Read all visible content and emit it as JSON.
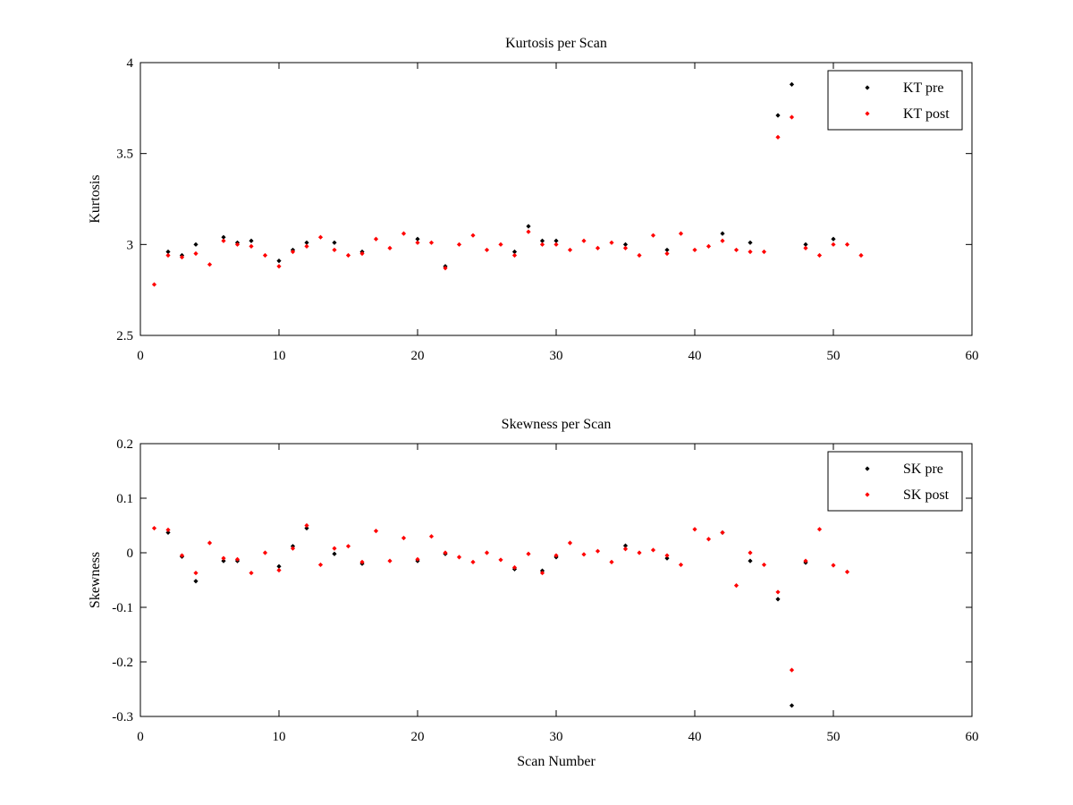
{
  "chart_data": [
    {
      "type": "scatter",
      "title": "Kurtosis per Scan",
      "xlabel": "",
      "ylabel": "Kurtosis",
      "xlim": [
        0,
        60
      ],
      "ylim": [
        2.5,
        4
      ],
      "xticks": [
        "0",
        "10",
        "20",
        "30",
        "40",
        "50",
        "60"
      ],
      "yticks": [
        "2.5",
        "3",
        "3.5",
        "4"
      ],
      "legend": "top-right",
      "grid": false,
      "series": [
        {
          "name": "KT pre",
          "color": "#000000",
          "points": [
            [
              2,
              2.96
            ],
            [
              3,
              2.94
            ],
            [
              4,
              3.0
            ],
            [
              6,
              3.04
            ],
            [
              7,
              3.01
            ],
            [
              8,
              3.02
            ],
            [
              10,
              2.91
            ],
            [
              11,
              2.97
            ],
            [
              12,
              3.01
            ],
            [
              14,
              3.01
            ],
            [
              16,
              2.96
            ],
            [
              20,
              3.03
            ],
            [
              22,
              2.88
            ],
            [
              27,
              2.96
            ],
            [
              28,
              3.1
            ],
            [
              29,
              3.02
            ],
            [
              30,
              3.02
            ],
            [
              35,
              3.0
            ],
            [
              38,
              2.97
            ],
            [
              42,
              3.06
            ],
            [
              44,
              3.01
            ],
            [
              46,
              3.71
            ],
            [
              47,
              3.88
            ],
            [
              48,
              3.0
            ],
            [
              50,
              3.03
            ]
          ]
        },
        {
          "name": "KT post",
          "color": "#ff0000",
          "points": [
            [
              1,
              2.78
            ],
            [
              2,
              2.94
            ],
            [
              3,
              2.93
            ],
            [
              4,
              2.95
            ],
            [
              5,
              2.89
            ],
            [
              6,
              3.02
            ],
            [
              7,
              3.0
            ],
            [
              8,
              2.99
            ],
            [
              9,
              2.94
            ],
            [
              10,
              2.88
            ],
            [
              11,
              2.96
            ],
            [
              12,
              2.99
            ],
            [
              13,
              3.04
            ],
            [
              14,
              2.97
            ],
            [
              15,
              2.94
            ],
            [
              16,
              2.95
            ],
            [
              17,
              3.03
            ],
            [
              18,
              2.98
            ],
            [
              19,
              3.06
            ],
            [
              20,
              3.01
            ],
            [
              21,
              3.01
            ],
            [
              22,
              2.87
            ],
            [
              23,
              3.0
            ],
            [
              24,
              3.05
            ],
            [
              25,
              2.97
            ],
            [
              26,
              3.0
            ],
            [
              27,
              2.94
            ],
            [
              28,
              3.07
            ],
            [
              29,
              3.0
            ],
            [
              30,
              3.0
            ],
            [
              31,
              2.97
            ],
            [
              32,
              3.02
            ],
            [
              33,
              2.98
            ],
            [
              34,
              3.01
            ],
            [
              35,
              2.98
            ],
            [
              36,
              2.94
            ],
            [
              37,
              3.05
            ],
            [
              38,
              2.95
            ],
            [
              39,
              3.06
            ],
            [
              40,
              2.97
            ],
            [
              41,
              2.99
            ],
            [
              42,
              3.02
            ],
            [
              43,
              2.97
            ],
            [
              44,
              2.96
            ],
            [
              45,
              2.96
            ],
            [
              46,
              3.59
            ],
            [
              47,
              3.7
            ],
            [
              48,
              2.98
            ],
            [
              49,
              2.94
            ],
            [
              50,
              3.0
            ],
            [
              51,
              3.0
            ],
            [
              52,
              2.94
            ]
          ]
        }
      ]
    },
    {
      "type": "scatter",
      "title": "Skewness per Scan",
      "xlabel": "Scan Number",
      "ylabel": "Skewness",
      "xlim": [
        0,
        60
      ],
      "ylim": [
        -0.3,
        0.2
      ],
      "xticks": [
        "0",
        "10",
        "20",
        "30",
        "40",
        "50",
        "60"
      ],
      "yticks": [
        "-0.3",
        "-0.2",
        "-0.1",
        "0",
        "0.1",
        "0.2"
      ],
      "legend": "top-right",
      "grid": false,
      "series": [
        {
          "name": "SK pre",
          "color": "#000000",
          "points": [
            [
              2,
              0.037
            ],
            [
              3,
              -0.007
            ],
            [
              4,
              -0.052
            ],
            [
              6,
              -0.015
            ],
            [
              7,
              -0.015
            ],
            [
              10,
              -0.025
            ],
            [
              11,
              0.012
            ],
            [
              12,
              0.045
            ],
            [
              14,
              -0.002
            ],
            [
              16,
              -0.02
            ],
            [
              20,
              -0.015
            ],
            [
              22,
              -0.002
            ],
            [
              27,
              -0.03
            ],
            [
              29,
              -0.033
            ],
            [
              30,
              -0.008
            ],
            [
              35,
              0.013
            ],
            [
              38,
              -0.01
            ],
            [
              42,
              0.037
            ],
            [
              44,
              -0.015
            ],
            [
              46,
              -0.085
            ],
            [
              47,
              -0.28
            ],
            [
              48,
              -0.018
            ]
          ]
        },
        {
          "name": "SK post",
          "color": "#ff0000",
          "points": [
            [
              1,
              0.045
            ],
            [
              2,
              0.042
            ],
            [
              3,
              -0.005
            ],
            [
              4,
              -0.037
            ],
            [
              5,
              0.018
            ],
            [
              6,
              -0.01
            ],
            [
              7,
              -0.012
            ],
            [
              8,
              -0.037
            ],
            [
              9,
              0.0
            ],
            [
              10,
              -0.032
            ],
            [
              11,
              0.008
            ],
            [
              12,
              0.05
            ],
            [
              13,
              -0.022
            ],
            [
              14,
              0.008
            ],
            [
              15,
              0.012
            ],
            [
              16,
              -0.017
            ],
            [
              17,
              0.04
            ],
            [
              18,
              -0.015
            ],
            [
              19,
              0.027
            ],
            [
              20,
              -0.012
            ],
            [
              21,
              0.03
            ],
            [
              22,
              0.0
            ],
            [
              23,
              -0.008
            ],
            [
              24,
              -0.017
            ],
            [
              25,
              0.0
            ],
            [
              26,
              -0.013
            ],
            [
              27,
              -0.027
            ],
            [
              28,
              -0.002
            ],
            [
              29,
              -0.037
            ],
            [
              30,
              -0.005
            ],
            [
              31,
              0.018
            ],
            [
              32,
              -0.003
            ],
            [
              33,
              0.003
            ],
            [
              34,
              -0.017
            ],
            [
              35,
              0.007
            ],
            [
              36,
              0.0
            ],
            [
              37,
              0.005
            ],
            [
              38,
              -0.005
            ],
            [
              39,
              -0.022
            ],
            [
              40,
              0.043
            ],
            [
              41,
              0.025
            ],
            [
              42,
              0.037
            ],
            [
              43,
              -0.06
            ],
            [
              44,
              0.0
            ],
            [
              45,
              -0.022
            ],
            [
              46,
              -0.072
            ],
            [
              47,
              -0.215
            ],
            [
              48,
              -0.015
            ],
            [
              49,
              0.043
            ],
            [
              50,
              -0.023
            ],
            [
              51,
              -0.035
            ]
          ]
        }
      ]
    }
  ]
}
